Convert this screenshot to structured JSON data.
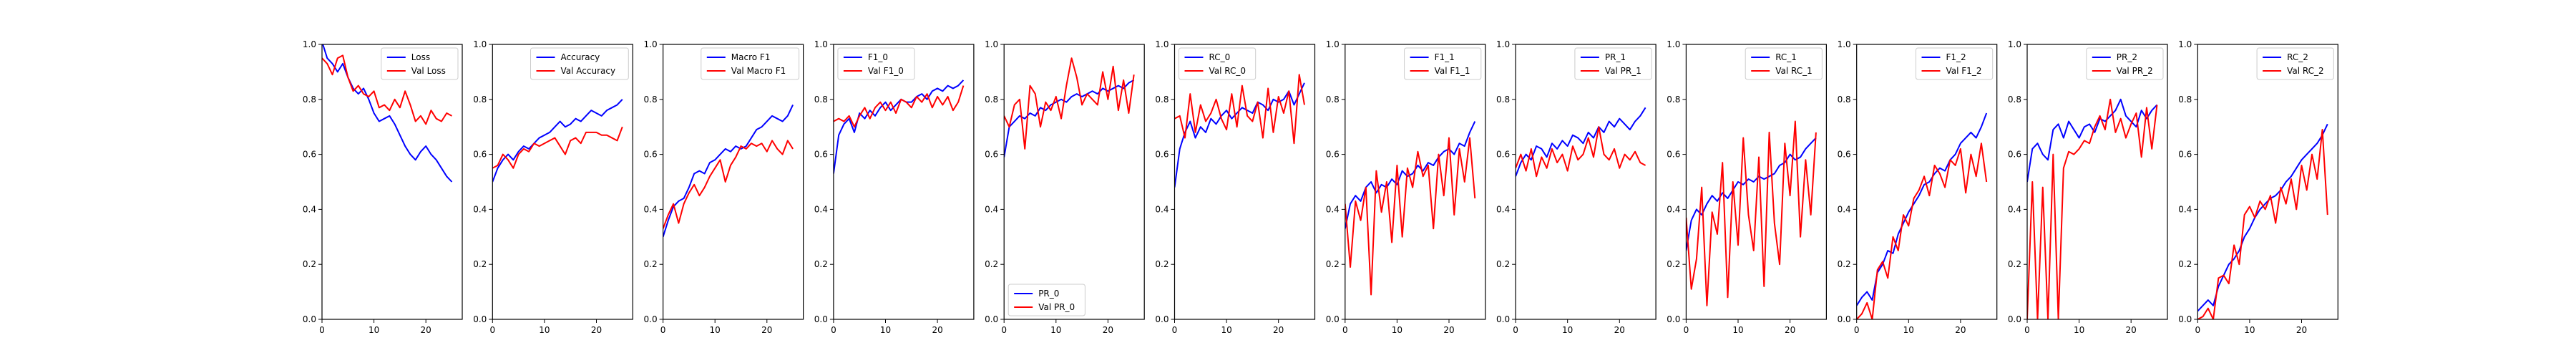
{
  "chart_data": [
    {
      "type": "line",
      "ylim": [
        0,
        1.0
      ],
      "xlim": [
        0,
        27
      ],
      "xticks": [
        0,
        10,
        20
      ],
      "yticks": [
        0.0,
        0.2,
        0.4,
        0.6,
        0.8,
        1.0
      ],
      "legend_position": "upper-right",
      "series": [
        {
          "name": "Loss",
          "color": "#0000ff",
          "values": [
            1.01,
            0.95,
            0.93,
            0.9,
            0.93,
            0.88,
            0.84,
            0.82,
            0.84,
            0.8,
            0.75,
            0.72,
            0.73,
            0.74,
            0.71,
            0.67,
            0.63,
            0.6,
            0.58,
            0.61,
            0.63,
            0.6,
            0.58,
            0.55,
            0.52,
            0.5
          ]
        },
        {
          "name": "Val Loss",
          "color": "#ff0000",
          "values": [
            0.95,
            0.93,
            0.89,
            0.95,
            0.96,
            0.88,
            0.83,
            0.85,
            0.82,
            0.81,
            0.83,
            0.77,
            0.78,
            0.76,
            0.8,
            0.77,
            0.83,
            0.78,
            0.72,
            0.74,
            0.71,
            0.76,
            0.73,
            0.72,
            0.75,
            0.74
          ]
        }
      ]
    },
    {
      "type": "line",
      "ylim": [
        0,
        1.0
      ],
      "xlim": [
        0,
        27
      ],
      "xticks": [
        0,
        10,
        20
      ],
      "yticks": [
        0.0,
        0.2,
        0.4,
        0.6,
        0.8,
        1.0
      ],
      "legend_position": "upper-right",
      "series": [
        {
          "name": "Accuracy",
          "color": "#0000ff",
          "values": [
            0.5,
            0.55,
            0.58,
            0.6,
            0.58,
            0.61,
            0.63,
            0.62,
            0.64,
            0.66,
            0.67,
            0.68,
            0.7,
            0.72,
            0.7,
            0.71,
            0.73,
            0.72,
            0.74,
            0.76,
            0.75,
            0.74,
            0.76,
            0.77,
            0.78,
            0.8
          ]
        },
        {
          "name": "Val Accuracy",
          "color": "#ff0000",
          "values": [
            0.55,
            0.56,
            0.6,
            0.58,
            0.55,
            0.6,
            0.62,
            0.61,
            0.64,
            0.63,
            0.64,
            0.65,
            0.66,
            0.63,
            0.6,
            0.65,
            0.66,
            0.64,
            0.68,
            0.68,
            0.68,
            0.67,
            0.67,
            0.66,
            0.65,
            0.7
          ]
        }
      ]
    },
    {
      "type": "line",
      "ylim": [
        0,
        1.0
      ],
      "xlim": [
        0,
        27
      ],
      "xticks": [
        0,
        10,
        20
      ],
      "yticks": [
        0.0,
        0.2,
        0.4,
        0.6,
        0.8,
        1.0
      ],
      "legend_position": "upper-right",
      "series": [
        {
          "name": "Macro F1",
          "color": "#0000ff",
          "values": [
            0.3,
            0.36,
            0.41,
            0.43,
            0.44,
            0.48,
            0.53,
            0.54,
            0.53,
            0.57,
            0.58,
            0.6,
            0.62,
            0.61,
            0.63,
            0.62,
            0.63,
            0.66,
            0.69,
            0.7,
            0.72,
            0.74,
            0.73,
            0.72,
            0.74,
            0.78
          ]
        },
        {
          "name": "Val Macro F1",
          "color": "#ff0000",
          "values": [
            0.33,
            0.38,
            0.42,
            0.35,
            0.42,
            0.46,
            0.49,
            0.45,
            0.48,
            0.52,
            0.55,
            0.58,
            0.5,
            0.56,
            0.59,
            0.63,
            0.62,
            0.64,
            0.63,
            0.64,
            0.61,
            0.65,
            0.62,
            0.6,
            0.65,
            0.62
          ]
        }
      ]
    },
    {
      "type": "line",
      "ylim": [
        0,
        1.0
      ],
      "xlim": [
        0,
        27
      ],
      "xticks": [
        0,
        10,
        20
      ],
      "yticks": [
        0.0,
        0.2,
        0.4,
        0.6,
        0.8,
        1.0
      ],
      "legend_position": "upper-left",
      "series": [
        {
          "name": "F1_0",
          "color": "#0000ff",
          "values": [
            0.53,
            0.67,
            0.71,
            0.73,
            0.68,
            0.75,
            0.73,
            0.76,
            0.74,
            0.77,
            0.79,
            0.76,
            0.78,
            0.8,
            0.79,
            0.79,
            0.81,
            0.82,
            0.8,
            0.83,
            0.84,
            0.83,
            0.85,
            0.84,
            0.85,
            0.87
          ]
        },
        {
          "name": "Val F1_0",
          "color": "#ff0000",
          "values": [
            0.72,
            0.73,
            0.72,
            0.74,
            0.7,
            0.74,
            0.77,
            0.73,
            0.77,
            0.79,
            0.76,
            0.79,
            0.75,
            0.8,
            0.79,
            0.77,
            0.81,
            0.79,
            0.82,
            0.77,
            0.81,
            0.78,
            0.81,
            0.76,
            0.79,
            0.85
          ]
        }
      ]
    },
    {
      "type": "line",
      "ylim": [
        0,
        1.0
      ],
      "xlim": [
        0,
        27
      ],
      "xticks": [
        0,
        10,
        20
      ],
      "yticks": [
        0.0,
        0.2,
        0.4,
        0.6,
        0.8,
        1.0
      ],
      "legend_position": "lower-left",
      "series": [
        {
          "name": "PR_0",
          "color": "#0000ff",
          "values": [
            0.59,
            0.7,
            0.72,
            0.74,
            0.73,
            0.75,
            0.74,
            0.77,
            0.76,
            0.78,
            0.79,
            0.8,
            0.79,
            0.81,
            0.82,
            0.81,
            0.82,
            0.83,
            0.82,
            0.84,
            0.83,
            0.84,
            0.85,
            0.84,
            0.86,
            0.87
          ]
        },
        {
          "name": "Val PR_0",
          "color": "#ff0000",
          "values": [
            0.74,
            0.7,
            0.78,
            0.8,
            0.62,
            0.85,
            0.82,
            0.7,
            0.79,
            0.76,
            0.81,
            0.73,
            0.85,
            0.95,
            0.88,
            0.78,
            0.82,
            0.8,
            0.78,
            0.9,
            0.8,
            0.92,
            0.76,
            0.87,
            0.75,
            0.89
          ]
        }
      ]
    },
    {
      "type": "line",
      "ylim": [
        0,
        1.0
      ],
      "xlim": [
        0,
        27
      ],
      "xticks": [
        0,
        10,
        20
      ],
      "yticks": [
        0.0,
        0.2,
        0.4,
        0.6,
        0.8,
        1.0
      ],
      "legend_position": "upper-left",
      "series": [
        {
          "name": "RC_0",
          "color": "#0000ff",
          "values": [
            0.48,
            0.62,
            0.68,
            0.72,
            0.66,
            0.7,
            0.68,
            0.73,
            0.71,
            0.74,
            0.76,
            0.73,
            0.75,
            0.77,
            0.76,
            0.75,
            0.79,
            0.78,
            0.76,
            0.8,
            0.79,
            0.8,
            0.83,
            0.78,
            0.82,
            0.86
          ]
        },
        {
          "name": "Val RC_0",
          "color": "#ff0000",
          "values": [
            0.73,
            0.74,
            0.66,
            0.82,
            0.68,
            0.78,
            0.72,
            0.75,
            0.8,
            0.73,
            0.69,
            0.82,
            0.7,
            0.85,
            0.74,
            0.72,
            0.79,
            0.66,
            0.84,
            0.68,
            0.81,
            0.75,
            0.83,
            0.64,
            0.89,
            0.78
          ]
        }
      ]
    },
    {
      "type": "line",
      "ylim": [
        0,
        1.0
      ],
      "xlim": [
        0,
        27
      ],
      "xticks": [
        0,
        10,
        20
      ],
      "yticks": [
        0.0,
        0.2,
        0.4,
        0.6,
        0.8,
        1.0
      ],
      "legend_position": "upper-right",
      "series": [
        {
          "name": "F1_1",
          "color": "#0000ff",
          "values": [
            0.33,
            0.42,
            0.45,
            0.43,
            0.48,
            0.5,
            0.46,
            0.49,
            0.48,
            0.51,
            0.49,
            0.54,
            0.52,
            0.53,
            0.56,
            0.54,
            0.57,
            0.56,
            0.59,
            0.61,
            0.62,
            0.6,
            0.64,
            0.63,
            0.68,
            0.72
          ]
        },
        {
          "name": "Val F1_1",
          "color": "#ff0000",
          "values": [
            0.42,
            0.19,
            0.43,
            0.36,
            0.48,
            0.09,
            0.54,
            0.39,
            0.5,
            0.28,
            0.56,
            0.3,
            0.55,
            0.48,
            0.61,
            0.52,
            0.56,
            0.33,
            0.6,
            0.45,
            0.66,
            0.38,
            0.62,
            0.5,
            0.66,
            0.44
          ]
        }
      ]
    },
    {
      "type": "line",
      "ylim": [
        0,
        1.0
      ],
      "xlim": [
        0,
        27
      ],
      "xticks": [
        0,
        10,
        20
      ],
      "yticks": [
        0.0,
        0.2,
        0.4,
        0.6,
        0.8,
        1.0
      ],
      "legend_position": "upper-right",
      "series": [
        {
          "name": "PR_1",
          "color": "#0000ff",
          "values": [
            0.52,
            0.57,
            0.6,
            0.58,
            0.63,
            0.62,
            0.59,
            0.64,
            0.62,
            0.65,
            0.63,
            0.67,
            0.66,
            0.64,
            0.68,
            0.66,
            0.7,
            0.68,
            0.72,
            0.7,
            0.73,
            0.71,
            0.69,
            0.72,
            0.74,
            0.77
          ]
        },
        {
          "name": "Val PR_1",
          "color": "#ff0000",
          "values": [
            0.55,
            0.6,
            0.54,
            0.62,
            0.52,
            0.59,
            0.55,
            0.62,
            0.57,
            0.6,
            0.54,
            0.63,
            0.58,
            0.6,
            0.66,
            0.59,
            0.7,
            0.6,
            0.58,
            0.62,
            0.55,
            0.6,
            0.58,
            0.61,
            0.57,
            0.56
          ]
        }
      ]
    },
    {
      "type": "line",
      "ylim": [
        0,
        1.0
      ],
      "xlim": [
        0,
        27
      ],
      "xticks": [
        0,
        10,
        20
      ],
      "yticks": [
        0.0,
        0.2,
        0.4,
        0.6,
        0.8,
        1.0
      ],
      "legend_position": "upper-right",
      "series": [
        {
          "name": "RC_1",
          "color": "#0000ff",
          "values": [
            0.25,
            0.36,
            0.4,
            0.38,
            0.42,
            0.45,
            0.43,
            0.46,
            0.44,
            0.47,
            0.5,
            0.49,
            0.51,
            0.5,
            0.52,
            0.51,
            0.52,
            0.53,
            0.56,
            0.57,
            0.6,
            0.58,
            0.59,
            0.62,
            0.64,
            0.66
          ]
        },
        {
          "name": "Val RC_1",
          "color": "#ff0000",
          "values": [
            0.37,
            0.11,
            0.22,
            0.48,
            0.05,
            0.39,
            0.31,
            0.57,
            0.08,
            0.5,
            0.27,
            0.66,
            0.38,
            0.25,
            0.59,
            0.12,
            0.68,
            0.35,
            0.2,
            0.64,
            0.45,
            0.72,
            0.3,
            0.58,
            0.38,
            0.68
          ]
        }
      ]
    },
    {
      "type": "line",
      "ylim": [
        0,
        1.0
      ],
      "xlim": [
        0,
        27
      ],
      "xticks": [
        0,
        10,
        20
      ],
      "yticks": [
        0.0,
        0.2,
        0.4,
        0.6,
        0.8,
        1.0
      ],
      "legend_position": "upper-right",
      "series": [
        {
          "name": "F1_2",
          "color": "#0000ff",
          "values": [
            0.05,
            0.08,
            0.1,
            0.07,
            0.17,
            0.2,
            0.25,
            0.24,
            0.31,
            0.35,
            0.39,
            0.42,
            0.45,
            0.49,
            0.5,
            0.53,
            0.55,
            0.54,
            0.58,
            0.6,
            0.64,
            0.66,
            0.68,
            0.66,
            0.7,
            0.75
          ]
        },
        {
          "name": "Val F1_2",
          "color": "#ff0000",
          "values": [
            0.0,
            0.02,
            0.06,
            0.0,
            0.18,
            0.21,
            0.15,
            0.3,
            0.25,
            0.38,
            0.34,
            0.44,
            0.47,
            0.52,
            0.45,
            0.56,
            0.53,
            0.48,
            0.58,
            0.56,
            0.62,
            0.46,
            0.6,
            0.52,
            0.64,
            0.5
          ]
        }
      ]
    },
    {
      "type": "line",
      "ylim": [
        0,
        1.0
      ],
      "xlim": [
        0,
        27
      ],
      "xticks": [
        0,
        10,
        20
      ],
      "yticks": [
        0.0,
        0.2,
        0.4,
        0.6,
        0.8,
        1.0
      ],
      "legend_position": "upper-right",
      "series": [
        {
          "name": "PR_2",
          "color": "#0000ff",
          "values": [
            0.5,
            0.62,
            0.64,
            0.6,
            0.58,
            0.69,
            0.71,
            0.66,
            0.72,
            0.69,
            0.66,
            0.7,
            0.71,
            0.68,
            0.73,
            0.72,
            0.74,
            0.76,
            0.8,
            0.74,
            0.72,
            0.7,
            0.76,
            0.73,
            0.76,
            0.78
          ]
        },
        {
          "name": "Val PR_2",
          "color": "#ff0000",
          "values": [
            0.0,
            0.5,
            0.0,
            0.48,
            0.0,
            0.6,
            0.0,
            0.55,
            0.61,
            0.6,
            0.62,
            0.65,
            0.64,
            0.7,
            0.74,
            0.69,
            0.8,
            0.68,
            0.73,
            0.66,
            0.71,
            0.75,
            0.59,
            0.77,
            0.62,
            0.78
          ]
        }
      ]
    },
    {
      "type": "line",
      "ylim": [
        0,
        1.0
      ],
      "xlim": [
        0,
        27
      ],
      "xticks": [
        0,
        10,
        20
      ],
      "yticks": [
        0.0,
        0.2,
        0.4,
        0.6,
        0.8,
        1.0
      ],
      "legend_position": "upper-right",
      "series": [
        {
          "name": "RC_2",
          "color": "#0000ff",
          "values": [
            0.03,
            0.05,
            0.07,
            0.05,
            0.12,
            0.16,
            0.2,
            0.22,
            0.25,
            0.3,
            0.33,
            0.37,
            0.4,
            0.42,
            0.44,
            0.45,
            0.47,
            0.5,
            0.52,
            0.55,
            0.58,
            0.6,
            0.62,
            0.64,
            0.67,
            0.71
          ]
        },
        {
          "name": "Val RC_2",
          "color": "#ff0000",
          "values": [
            0.0,
            0.01,
            0.04,
            0.0,
            0.15,
            0.16,
            0.13,
            0.27,
            0.2,
            0.38,
            0.41,
            0.37,
            0.43,
            0.4,
            0.45,
            0.35,
            0.48,
            0.42,
            0.51,
            0.4,
            0.56,
            0.47,
            0.6,
            0.51,
            0.69,
            0.38
          ]
        }
      ]
    }
  ]
}
